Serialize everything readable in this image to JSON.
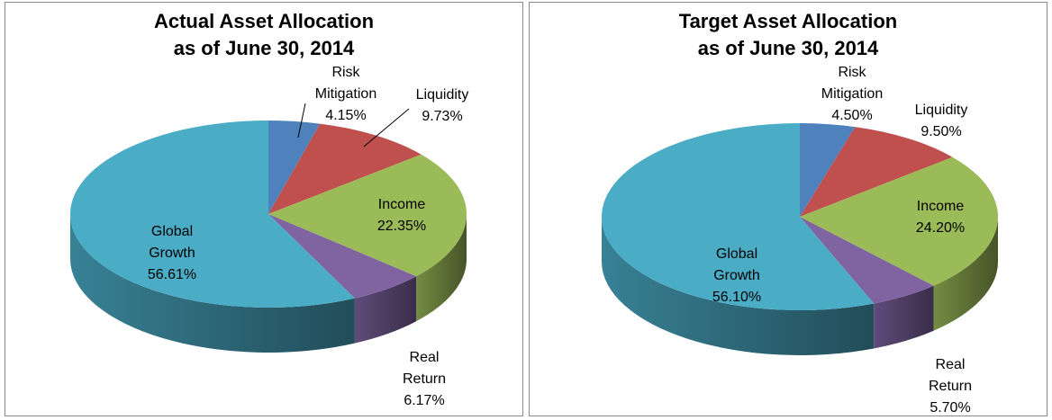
{
  "chart_data": [
    {
      "type": "pie3d",
      "title": "Actual Asset Allocation",
      "subtitle": "as of June 30, 2014",
      "categories": [
        "Risk Mitigation",
        "Liquidity",
        "Income",
        "Real Return",
        "Global Growth"
      ],
      "values": [
        4.15,
        9.73,
        22.35,
        6.17,
        56.61
      ],
      "value_labels": [
        "4.15%",
        "9.73%",
        "22.35%",
        "6.17%",
        "56.61%"
      ],
      "colors": [
        "#4f81bd",
        "#c0504d",
        "#9bbb59",
        "#8064a2",
        "#4bacc6"
      ]
    },
    {
      "type": "pie3d",
      "title": "Target Asset Allocation",
      "subtitle": "as of June 30, 2014",
      "categories": [
        "Risk Mitigation",
        "Liquidity",
        "Income",
        "Real Return",
        "Global Growth"
      ],
      "values": [
        4.5,
        9.5,
        24.2,
        5.7,
        56.1
      ],
      "value_labels": [
        "4.50%",
        "9.50%",
        "24.20%",
        "5.70%",
        "56.10%"
      ],
      "colors": [
        "#4f81bd",
        "#c0504d",
        "#9bbb59",
        "#8064a2",
        "#4bacc6"
      ]
    }
  ]
}
